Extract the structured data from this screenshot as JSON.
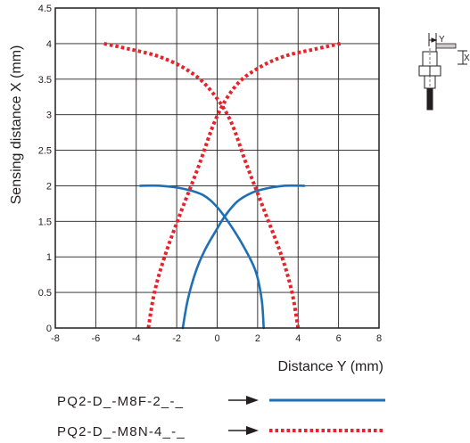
{
  "chart_data": {
    "type": "line",
    "xlabel": "Distance Y (mm)",
    "ylabel": "Sensing distance X (mm)",
    "xlim": [
      -8,
      8
    ],
    "ylim": [
      0,
      4.5
    ],
    "x_ticks": [
      -8,
      -6,
      -4,
      -2,
      0,
      2,
      4,
      6,
      8
    ],
    "y_ticks": [
      0,
      0.5,
      1,
      1.5,
      2,
      2.5,
      3,
      3.5,
      4,
      4.5
    ],
    "x_tick_labels": [
      "-8",
      "-6",
      "-4",
      "-2",
      "0",
      "2",
      "4",
      "6",
      "8"
    ],
    "y_tick_labels": [
      "0",
      "0.5",
      "1",
      "1.5",
      "2",
      "2.5",
      "3",
      "3.5",
      "4",
      "4.5"
    ],
    "grid": true,
    "series": [
      {
        "name": "PQ2-D_-M8F-2_-_",
        "color": "#1f6fb5",
        "style": "solid",
        "curves": [
          {
            "x": [
              -1.7,
              -1.45,
              -1.05,
              -0.6,
              -0.1,
              0.4,
              1.0,
              1.7,
              2.4,
              3.3,
              4.3
            ],
            "y": [
              0,
              0.4,
              0.8,
              1.1,
              1.35,
              1.58,
              1.78,
              1.9,
              1.96,
              2.0,
              2.0
            ]
          },
          {
            "x": [
              2.3,
              2.2,
              1.9,
              1.3,
              0.65,
              0.0,
              -0.7,
              -1.7,
              -2.8,
              -3.8
            ],
            "y": [
              0,
              0.4,
              0.8,
              1.15,
              1.45,
              1.7,
              1.87,
              1.96,
              2.0,
              2.0
            ]
          }
        ]
      },
      {
        "name": "PQ2-D_-M8N-4_-_",
        "color": "#e8212b",
        "style": "dotted",
        "curves": [
          {
            "x": [
              -3.4,
              -3.1,
              -2.6,
              -1.9,
              -0.95,
              -0.05,
              0.9,
              2.0,
              3.3,
              4.8,
              6.1
            ],
            "y": [
              0,
              0.5,
              1.0,
              1.55,
              2.25,
              2.95,
              3.4,
              3.65,
              3.82,
              3.92,
              4.0
            ]
          },
          {
            "x": [
              4.0,
              3.7,
              3.2,
              2.4,
              1.45,
              0.6,
              -0.5,
              -1.6,
              -2.9,
              -4.3,
              -5.6
            ],
            "y": [
              0,
              0.5,
              1.0,
              1.6,
              2.3,
              2.95,
              3.4,
              3.65,
              3.82,
              3.92,
              4.0
            ]
          }
        ]
      }
    ]
  },
  "legend": {
    "items": [
      {
        "label": "PQ2-D_-M8F-2_-_",
        "color": "#1f6fb5",
        "style": "solid"
      },
      {
        "label": "PQ2-D_-M8N-4_-_",
        "color": "#e8212b",
        "style": "dotted"
      }
    ]
  },
  "sensor_diagram": {
    "label_y": "Y",
    "label_x": "X"
  }
}
